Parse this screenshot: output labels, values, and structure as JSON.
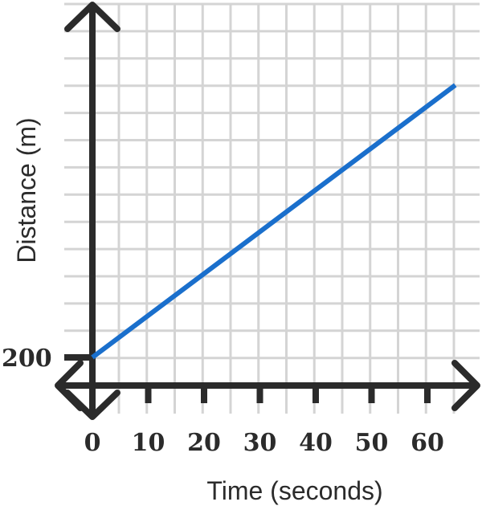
{
  "chart_data": {
    "type": "line",
    "title": "",
    "xlabel": "Time (seconds)",
    "ylabel": "Distance (m)",
    "xlim": [
      0,
      65
    ],
    "ylim": [
      200,
      1200
    ],
    "x_ticks": [
      "0",
      "10",
      "20",
      "30",
      "40",
      "50",
      "60"
    ],
    "y_ticks": [
      "200"
    ],
    "grid": true,
    "series": [
      {
        "x": [
          0,
          65
        ],
        "y": [
          200,
          700
        ],
        "color": "#1a6fcc"
      }
    ],
    "colors": {
      "axis": "#2b2b2b",
      "grid": "#d4d4d4",
      "line": "#1a6fcc"
    }
  }
}
